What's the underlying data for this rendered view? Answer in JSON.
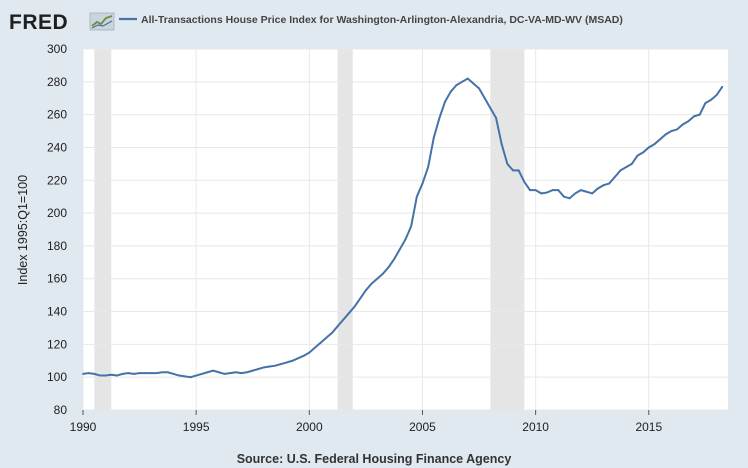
{
  "header": {
    "logo_text": "FRED",
    "logo_icon": "trend-chart-icon",
    "legend_label": "All-Transactions House Price Index for Washington-Arlington-Alexandria, DC-VA-MD-WV (MSAD)"
  },
  "footer": {
    "source": "Source: U.S. Federal Housing Finance Agency"
  },
  "colors": {
    "background": "#e1e9f0",
    "plot_background": "#ffffff",
    "series_line": "#4572a7",
    "recession_shade": "#e5e5e5",
    "grid": "#e8e8e8"
  },
  "chart_data": {
    "type": "line",
    "title": "",
    "xlabel": "",
    "ylabel": "Index 1995:Q1=100",
    "xlim": [
      1990.0,
      2018.5
    ],
    "ylim": [
      80,
      300
    ],
    "x_ticks": [
      "1990",
      "1995",
      "2000",
      "2005",
      "2010",
      "2015"
    ],
    "y_ticks": [
      "80",
      "100",
      "120",
      "140",
      "160",
      "180",
      "200",
      "220",
      "240",
      "260",
      "280",
      "300"
    ],
    "grid": true,
    "legend_position": "top-left",
    "recessions": [
      [
        1990.5,
        1991.25
      ],
      [
        2001.25,
        2001.92
      ],
      [
        2008.0,
        2009.5
      ]
    ],
    "series": [
      {
        "name": "All-Transactions House Price Index for Washington-Arlington-Alexandria, DC-VA-MD-WV (MSAD)",
        "x": [
          1990.0,
          1990.25,
          1990.5,
          1990.75,
          1991.0,
          1991.25,
          1991.5,
          1991.75,
          1992.0,
          1992.25,
          1992.5,
          1992.75,
          1993.0,
          1993.25,
          1993.5,
          1993.75,
          1994.0,
          1994.25,
          1994.5,
          1994.75,
          1995.0,
          1995.25,
          1995.5,
          1995.75,
          1996.0,
          1996.25,
          1996.5,
          1996.75,
          1997.0,
          1997.25,
          1997.5,
          1997.75,
          1998.0,
          1998.25,
          1998.5,
          1998.75,
          1999.0,
          1999.25,
          1999.5,
          1999.75,
          2000.0,
          2000.25,
          2000.5,
          2000.75,
          2001.0,
          2001.25,
          2001.5,
          2001.75,
          2002.0,
          2002.25,
          2002.5,
          2002.75,
          2003.0,
          2003.25,
          2003.5,
          2003.75,
          2004.0,
          2004.25,
          2004.5,
          2004.75,
          2005.0,
          2005.25,
          2005.5,
          2005.75,
          2006.0,
          2006.25,
          2006.5,
          2006.75,
          2007.0,
          2007.25,
          2007.5,
          2007.75,
          2008.0,
          2008.25,
          2008.5,
          2008.75,
          2009.0,
          2009.25,
          2009.5,
          2009.75,
          2010.0,
          2010.25,
          2010.5,
          2010.75,
          2011.0,
          2011.25,
          2011.5,
          2011.75,
          2012.0,
          2012.25,
          2012.5,
          2012.75,
          2013.0,
          2013.25,
          2013.5,
          2013.75,
          2014.0,
          2014.25,
          2014.5,
          2014.75,
          2015.0,
          2015.25,
          2015.5,
          2015.75,
          2016.0,
          2016.25,
          2016.5,
          2016.75,
          2017.0,
          2017.25,
          2017.5,
          2017.75,
          2018.0,
          2018.25
        ],
        "values": [
          102,
          102.5,
          102,
          101,
          101,
          101.5,
          101,
          102,
          102.5,
          102,
          102.5,
          102.5,
          102.5,
          102.5,
          103,
          103,
          102,
          101,
          100.5,
          100,
          101,
          102,
          103,
          104,
          103,
          102,
          102.5,
          103,
          102.5,
          103,
          104,
          105,
          106,
          106.5,
          107,
          108,
          109,
          110,
          111.5,
          113,
          115,
          118,
          121,
          124,
          127,
          131,
          135,
          139,
          143,
          148,
          153,
          157,
          160,
          163,
          167,
          172,
          178,
          184,
          192,
          210,
          218,
          228,
          246,
          258,
          268,
          274,
          278,
          280,
          282,
          279,
          276,
          270,
          264,
          258,
          242,
          230,
          226,
          226,
          219,
          214,
          214,
          212,
          212.5,
          214,
          214,
          210,
          209,
          212,
          214,
          213,
          212,
          215,
          217,
          218,
          222,
          226,
          228,
          230,
          235,
          237,
          240,
          242,
          245,
          248,
          250,
          251,
          254,
          256,
          259,
          260,
          267,
          269,
          272,
          277
        ]
      }
    ]
  }
}
